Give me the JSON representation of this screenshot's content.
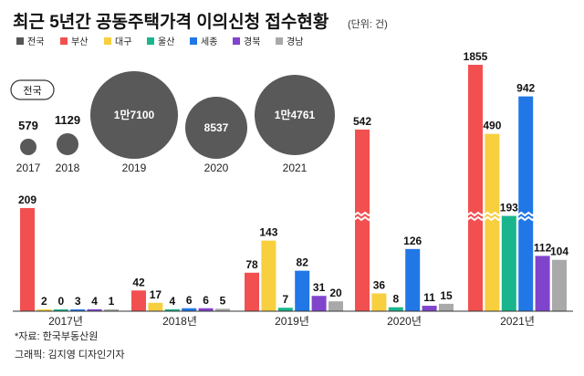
{
  "title": "최근 5년간 공동주택가격 이의신청 접수현황",
  "unit": "(단위: 건)",
  "legend": [
    {
      "name": "전국",
      "color": "#555555"
    },
    {
      "name": "부산",
      "color": "#f25050"
    },
    {
      "name": "대구",
      "color": "#f7cf3f"
    },
    {
      "name": "울산",
      "color": "#1ab58c"
    },
    {
      "name": "세종",
      "color": "#2277e6"
    },
    {
      "name": "경북",
      "color": "#8044cc"
    },
    {
      "name": "경남",
      "color": "#a9a9a9"
    }
  ],
  "national": {
    "label": "전국",
    "items": [
      {
        "year": "2017",
        "label": "579"
      },
      {
        "year": "2018",
        "label": "1129"
      },
      {
        "year": "2019",
        "label": "1만7100"
      },
      {
        "year": "2020",
        "label": "8537"
      },
      {
        "year": "2021",
        "label": "1만4761"
      }
    ]
  },
  "chart_data": {
    "type": "bar",
    "title": "최근 5년간 공동주택가격 이의신청 접수현황",
    "unit": "건",
    "categories": [
      "2017년",
      "2018년",
      "2019년",
      "2020년",
      "2021년"
    ],
    "national_totals": [
      579,
      1129,
      17100,
      8537,
      14761
    ],
    "series": [
      {
        "name": "부산",
        "values": [
          209,
          42,
          78,
          542,
          1855
        ]
      },
      {
        "name": "대구",
        "values": [
          2,
          17,
          143,
          36,
          490
        ]
      },
      {
        "name": "울산",
        "values": [
          0,
          4,
          7,
          8,
          193
        ]
      },
      {
        "name": "세종",
        "values": [
          3,
          6,
          82,
          126,
          942
        ]
      },
      {
        "name": "경북",
        "values": [
          4,
          6,
          31,
          11,
          112
        ]
      },
      {
        "name": "경남",
        "values": [
          1,
          5,
          20,
          15,
          104
        ]
      }
    ],
    "broken_axis": true
  },
  "notes": {
    "source": "*자료: 한국부동산원",
    "credit": "그래픽: 김지영 디자인기자"
  }
}
